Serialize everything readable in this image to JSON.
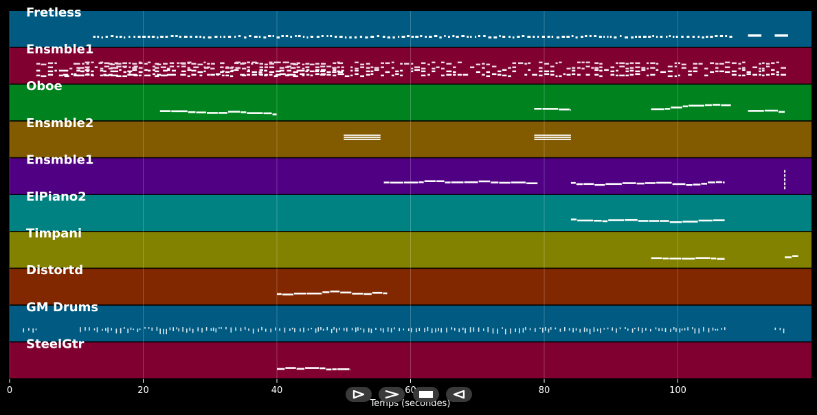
{
  "chart_data": {
    "type": "piano-roll",
    "xlabel": "Temps (secondes)",
    "xlim": [
      0,
      120
    ],
    "xticks": [
      0,
      20,
      40,
      60,
      80,
      100
    ],
    "grid": true,
    "tracks": [
      {
        "name": "Fretless",
        "color": "#005a82",
        "style": "dense-short",
        "segments": [
          [
            12.5,
            108
          ]
        ],
        "sustained": [
          [
            110.5,
            112.5
          ],
          [
            114.5,
            116.5
          ]
        ]
      },
      {
        "name": "Ensmble1",
        "color": "#800030",
        "style": "chords",
        "segments": [
          [
            4,
            11
          ],
          [
            8,
            50
          ],
          [
            10,
            116
          ]
        ]
      },
      {
        "name": "Oboe",
        "color": "#00821e",
        "style": "melody",
        "segments": [
          [
            22.5,
            40
          ],
          [
            78.5,
            84
          ],
          [
            96,
            108
          ],
          [
            110.5,
            116
          ]
        ]
      },
      {
        "name": "Ensmble2",
        "color": "#825a00",
        "style": "block",
        "segments": [
          [
            50,
            55.5
          ],
          [
            78.5,
            84
          ]
        ]
      },
      {
        "name": "Ensmble1",
        "color": "#500082",
        "style": "melody",
        "segments": [
          [
            56,
            79
          ],
          [
            84,
            107
          ]
        ],
        "marks": [
          116
        ]
      },
      {
        "name": "ElPiano2",
        "color": "#008282",
        "style": "melody",
        "segments": [
          [
            84,
            107
          ]
        ]
      },
      {
        "name": "Timpani",
        "color": "#828200",
        "style": "melody",
        "segments": [
          [
            96,
            107
          ],
          [
            116,
            118
          ]
        ]
      },
      {
        "name": "Distortd",
        "color": "#822800",
        "style": "melody",
        "segments": [
          [
            40,
            56.5
          ]
        ]
      },
      {
        "name": "GM Drums",
        "color": "#005a82",
        "style": "drums",
        "segments": [
          [
            2,
            4
          ],
          [
            10.5,
            107
          ],
          [
            114.5,
            116
          ]
        ]
      },
      {
        "name": "SteelGtr",
        "color": "#800030",
        "style": "melody",
        "segments": [
          [
            40,
            51
          ]
        ]
      }
    ]
  },
  "controls": {
    "play_label": "play",
    "forward_label": "forward",
    "stop_label": "stop",
    "rewind_label": "rewind"
  }
}
